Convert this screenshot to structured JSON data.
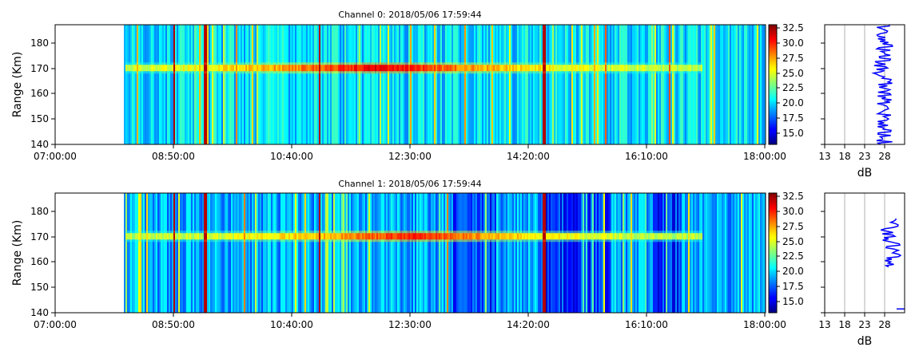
{
  "figure": {
    "panels": [
      {
        "title": "Channel 0: 2018/05/06 17:59:44",
        "ylabel": "Range (Km)",
        "yticks": [
          "140",
          "150",
          "160",
          "170",
          "180"
        ],
        "xticks": [
          "07:00:00",
          "08:50:00",
          "10:40:00",
          "12:30:00",
          "14:20:00",
          "16:10:00",
          "18:00:00"
        ],
        "colorbar_ticks": [
          "15.0",
          "17.5",
          "20.0",
          "22.5",
          "25.0",
          "27.5",
          "30.0",
          "32.5"
        ],
        "profile_xticks": [
          "13",
          "18",
          "23",
          "28"
        ],
        "profile_xlabel": "dB"
      },
      {
        "title": "Channel 1: 2018/05/06 17:59:44",
        "ylabel": "Range (Km)",
        "yticks": [
          "140",
          "150",
          "160",
          "170",
          "180"
        ],
        "xticks": [
          "07:00:00",
          "08:50:00",
          "10:40:00",
          "12:30:00",
          "14:20:00",
          "16:10:00",
          "18:00:00"
        ],
        "colorbar_ticks": [
          "15.0",
          "17.5",
          "20.0",
          "22.5",
          "25.0",
          "27.5",
          "30.0",
          "32.5"
        ],
        "profile_xticks": [
          "13",
          "18",
          "23",
          "28"
        ],
        "profile_xlabel": "dB"
      }
    ],
    "colors": {
      "colormap": "jet",
      "profile_line": "#0000ff",
      "grid": "#b0b0b0"
    }
  },
  "chart_data": [
    {
      "type": "heatmap",
      "title": "Channel 0: 2018/05/06 17:59:44",
      "ylabel": "Range (Km)",
      "x_range": [
        "07:00:00",
        "18:00:00"
      ],
      "data_start": "08:04:00",
      "ylim": [
        140,
        187
      ],
      "clim": [
        13,
        33
      ],
      "colorbar_label": "",
      "background_level": 20,
      "echo_layer": {
        "range_km": 170,
        "start": "08:04:00",
        "end": "17:00:00",
        "peak_level": 31,
        "peak_time": "12:00:00"
      },
      "strong_columns": [
        "08:50:00",
        "09:19:00",
        "11:05:00",
        "14:34:00"
      ],
      "profile": {
        "xlabel": "dB",
        "xlim": [
          13,
          33
        ],
        "typical_db": 28
      }
    },
    {
      "type": "heatmap",
      "title": "Channel 1: 2018/05/06 17:59:44",
      "ylabel": "Range (Km)",
      "x_range": [
        "07:00:00",
        "18:00:00"
      ],
      "data_start": "08:04:00",
      "ylim": [
        140,
        187
      ],
      "clim": [
        13,
        33
      ],
      "colorbar_label": "",
      "background_level": 19,
      "echo_layer": {
        "range_km": 170,
        "start": "08:04:00",
        "end": "17:00:00",
        "peak_level": 30,
        "peak_time": "12:30:00"
      },
      "strong_columns": [
        "08:50:00",
        "09:19:00",
        "11:05:00",
        "14:34:00"
      ],
      "profile": {
        "xlabel": "dB",
        "xlim": [
          13,
          33
        ],
        "typical_db": 30
      }
    }
  ]
}
